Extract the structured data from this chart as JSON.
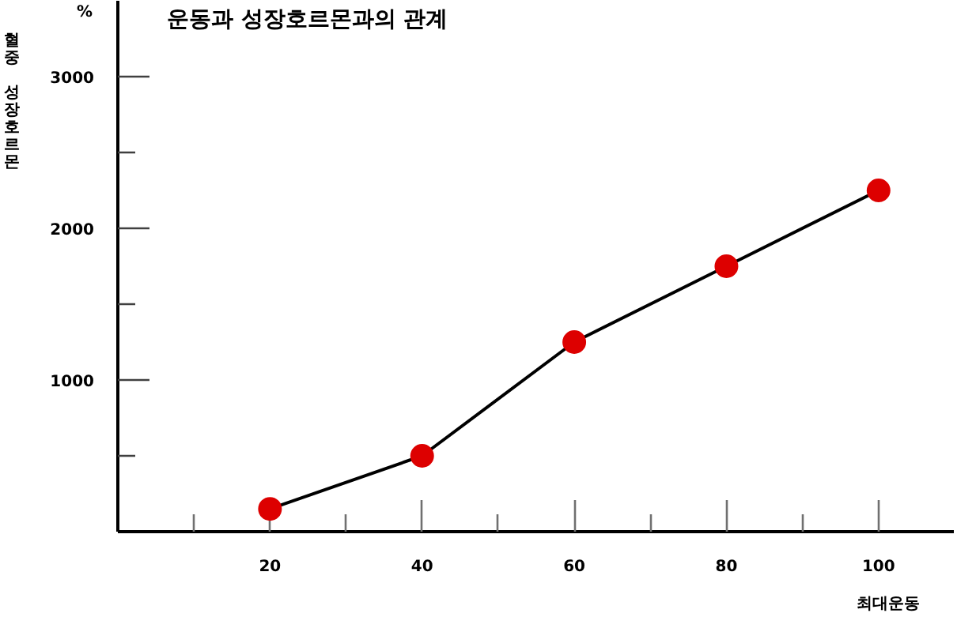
{
  "chart_data": {
    "type": "line",
    "title": "운동과 성장호르몬과의 관계",
    "xlabel": "최대운동",
    "ylabel": "혈중 성장호르몬",
    "annotations": [
      "%"
    ],
    "x": [
      20,
      40,
      60,
      80,
      100
    ],
    "series": [
      {
        "color": "#000000",
        "colors": [
          "#dd0000",
          "#dd0000",
          "#dd0000",
          "#dd0000",
          "#dd0000"
        ],
        "values": [
          150,
          500,
          1250,
          1750,
          2250
        ]
      }
    ],
    "marker": "circle",
    "line_style": "solid",
    "grid": false,
    "xlim": [
      0,
      110
    ],
    "xticks": [
      {
        "value": 10,
        "label": null
      },
      20,
      {
        "value": 30,
        "label": null
      },
      40,
      {
        "value": 50,
        "label": null
      },
      60,
      {
        "value": 70,
        "label": null
      },
      80,
      {
        "value": 90,
        "label": null
      },
      100
    ],
    "ylim": [
      0,
      3500
    ],
    "yticks": [
      {
        "value": 500,
        "label": null
      },
      1000,
      {
        "value": 1500,
        "label": null
      },
      2000,
      {
        "value": 2500,
        "label": null
      },
      3000
    ]
  }
}
